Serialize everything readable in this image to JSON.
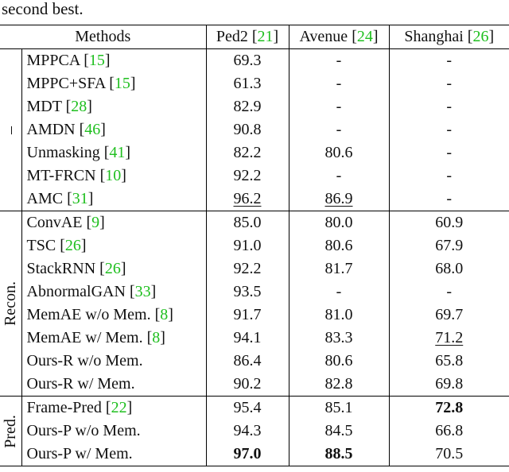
{
  "caption_tail": "second best.",
  "header": {
    "methods": "Methods",
    "columns": [
      {
        "name": "Ped2",
        "ref": "21"
      },
      {
        "name": "Avenue",
        "ref": "24"
      },
      {
        "name": "Shanghai",
        "ref": "26"
      }
    ]
  },
  "groups": [
    {
      "label": "–",
      "rows": [
        {
          "method": "MPPCA",
          "ref": "15",
          "ped2": "69.3",
          "avenue": "-",
          "shanghai": "-"
        },
        {
          "method": "MPPC+SFA",
          "ref": "15",
          "ped2": "61.3",
          "avenue": "-",
          "shanghai": "-"
        },
        {
          "method": "MDT",
          "ref": "28",
          "ped2": "82.9",
          "avenue": "-",
          "shanghai": "-"
        },
        {
          "method": "AMDN",
          "ref": "46",
          "ped2": "90.8",
          "avenue": "-",
          "shanghai": "-"
        },
        {
          "method": "Unmasking",
          "ref": "41",
          "ped2": "82.2",
          "avenue": "80.6",
          "shanghai": "-"
        },
        {
          "method": "MT-FRCN",
          "ref": "10",
          "ped2": "92.2",
          "avenue": "-",
          "shanghai": "-"
        },
        {
          "method": "AMC",
          "ref": "31",
          "ped2": "96.2",
          "avenue": "86.9",
          "shanghai": "-"
        }
      ]
    },
    {
      "label": "Recon.",
      "rows": [
        {
          "method": "ConvAE",
          "ref": "9",
          "ped2": "85.0",
          "avenue": "80.0",
          "shanghai": "60.9"
        },
        {
          "method": "TSC",
          "ref": "26",
          "ped2": "91.0",
          "avenue": "80.6",
          "shanghai": "67.9"
        },
        {
          "method": "StackRNN",
          "ref": "26",
          "ped2": "92.2",
          "avenue": "81.7",
          "shanghai": "68.0"
        },
        {
          "method": "AbnormalGAN",
          "ref": "33",
          "ped2": "93.5",
          "avenue": "-",
          "shanghai": "-"
        },
        {
          "method": "MemAE w/o Mem.",
          "ref": "8",
          "ped2": "91.7",
          "avenue": "81.0",
          "shanghai": "69.7"
        },
        {
          "method": "MemAE w/ Mem.",
          "ref": "8",
          "ped2": "94.1",
          "avenue": "83.3",
          "shanghai": "71.2"
        },
        {
          "method": "Ours-R w/o Mem.",
          "ref": "",
          "ped2": "86.4",
          "avenue": "80.6",
          "shanghai": "65.8"
        },
        {
          "method": "Ours-R w/ Mem.",
          "ref": "",
          "ped2": "90.2",
          "avenue": "82.8",
          "shanghai": "69.8"
        }
      ]
    },
    {
      "label": "Pred.",
      "rows": [
        {
          "method": "Frame-Pred",
          "ref": "22",
          "ped2": "95.4",
          "avenue": "85.1",
          "shanghai": "72.8"
        },
        {
          "method": "Ours-P w/o Mem.",
          "ref": "",
          "ped2": "94.3",
          "avenue": "84.5",
          "shanghai": "66.8"
        },
        {
          "method": "Ours-P w/ Mem.",
          "ref": "",
          "ped2": "97.0",
          "avenue": "88.5",
          "shanghai": "70.5"
        }
      ]
    }
  ]
}
